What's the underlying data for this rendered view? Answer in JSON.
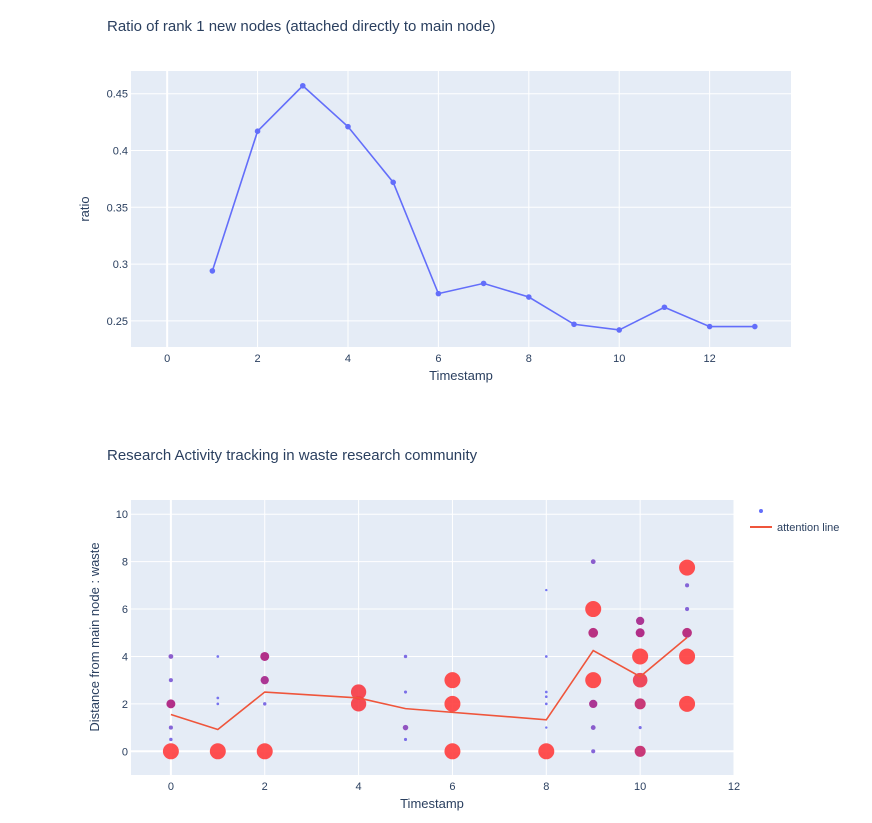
{
  "chart_data": [
    {
      "type": "line",
      "title": "Ratio of rank 1 new nodes (attached directly to main node)",
      "xlabel": "Timestamp",
      "ylabel": "ratio",
      "xlim": [
        -0.8,
        13.8
      ],
      "ylim": [
        0.227,
        0.47
      ],
      "xticks": [
        0,
        2,
        4,
        6,
        8,
        10,
        12
      ],
      "yticks": [
        0.25,
        0.3,
        0.35,
        0.4,
        0.45
      ],
      "ytick_labels": [
        "0.25",
        "0.3",
        "0.35",
        "0.4",
        "0.45"
      ],
      "grid": true,
      "line_color": "#636efa",
      "series": [
        {
          "x": [
            1,
            2,
            3,
            4,
            5,
            6,
            7,
            8,
            9,
            10,
            11,
            12,
            13
          ],
          "values": [
            0.294,
            0.417,
            0.457,
            0.421,
            0.372,
            0.274,
            0.283,
            0.271,
            0.247,
            0.242,
            0.262,
            0.245,
            0.245
          ]
        }
      ]
    },
    {
      "type": "scatter",
      "title": "Research Activity tracking in waste research community",
      "xlabel": "Timestamp",
      "ylabel": "Distance from main node : waste",
      "xlim": [
        -0.85,
        12
      ],
      "ylim": [
        -1,
        10.6
      ],
      "xticks": [
        0,
        2,
        4,
        6,
        8,
        10,
        12
      ],
      "yticks": [
        0,
        2,
        4,
        6,
        8,
        10
      ],
      "grid": true,
      "legend_position": "right",
      "colors": {
        "low": "#636efa",
        "mid": "#ab1a7c",
        "high": "#ff3d3d",
        "line": "#ef553b"
      },
      "series": [
        {
          "name": "",
          "points": [
            {
              "x": 0,
              "y": 0,
              "w": 1.0
            },
            {
              "x": 0,
              "y": 0.5,
              "w": 0.1
            },
            {
              "x": 0,
              "y": 1,
              "w": 0.15
            },
            {
              "x": 0,
              "y": 2,
              "w": 0.5
            },
            {
              "x": 0,
              "y": 3,
              "w": 0.15
            },
            {
              "x": 0,
              "y": 4,
              "w": 0.2
            },
            {
              "x": 1,
              "y": 0,
              "w": 1.0
            },
            {
              "x": 1,
              "y": 2,
              "w": 0.05
            },
            {
              "x": 1,
              "y": 2.25,
              "w": 0.05
            },
            {
              "x": 1,
              "y": 4,
              "w": 0.05
            },
            {
              "x": 2,
              "y": 0,
              "w": 1.0
            },
            {
              "x": 2,
              "y": 2,
              "w": 0.1
            },
            {
              "x": 2,
              "y": 3,
              "w": 0.45
            },
            {
              "x": 2,
              "y": 4,
              "w": 0.5
            },
            {
              "x": 4,
              "y": 2,
              "w": 0.95
            },
            {
              "x": 4,
              "y": 2.5,
              "w": 0.95
            },
            {
              "x": 5,
              "y": 0.5,
              "w": 0.08
            },
            {
              "x": 5,
              "y": 1,
              "w": 0.25
            },
            {
              "x": 5,
              "y": 2.5,
              "w": 0.08
            },
            {
              "x": 5,
              "y": 4,
              "w": 0.1
            },
            {
              "x": 6,
              "y": 0,
              "w": 1.0
            },
            {
              "x": 6,
              "y": 2,
              "w": 1.0
            },
            {
              "x": 6,
              "y": 3,
              "w": 1.0
            },
            {
              "x": 8,
              "y": 0,
              "w": 1.0
            },
            {
              "x": 8,
              "y": 1,
              "w": 0.03
            },
            {
              "x": 8,
              "y": 2,
              "w": 0.05
            },
            {
              "x": 8,
              "y": 2.3,
              "w": 0.05
            },
            {
              "x": 8,
              "y": 2.5,
              "w": 0.05
            },
            {
              "x": 8,
              "y": 4,
              "w": 0.05
            },
            {
              "x": 8,
              "y": 6.8,
              "w": 0.03
            },
            {
              "x": 9,
              "y": 0,
              "w": 0.15
            },
            {
              "x": 9,
              "y": 1,
              "w": 0.2
            },
            {
              "x": 9,
              "y": 2,
              "w": 0.45
            },
            {
              "x": 9,
              "y": 3,
              "w": 1.0
            },
            {
              "x": 9,
              "y": 5,
              "w": 0.55
            },
            {
              "x": 9,
              "y": 6,
              "w": 1.0
            },
            {
              "x": 9,
              "y": 8,
              "w": 0.2
            },
            {
              "x": 10,
              "y": 0,
              "w": 0.65
            },
            {
              "x": 10,
              "y": 1,
              "w": 0.08
            },
            {
              "x": 10,
              "y": 2,
              "w": 0.65
            },
            {
              "x": 10,
              "y": 3,
              "w": 0.9
            },
            {
              "x": 10,
              "y": 4,
              "w": 1.0
            },
            {
              "x": 10,
              "y": 5,
              "w": 0.5
            },
            {
              "x": 10,
              "y": 5.5,
              "w": 0.45
            },
            {
              "x": 11,
              "y": 2,
              "w": 1.0
            },
            {
              "x": 11,
              "y": 4,
              "w": 1.0
            },
            {
              "x": 11,
              "y": 5,
              "w": 0.55
            },
            {
              "x": 11,
              "y": 6,
              "w": 0.15
            },
            {
              "x": 11,
              "y": 7,
              "w": 0.15
            },
            {
              "x": 11,
              "y": 7.75,
              "w": 1.0
            }
          ]
        },
        {
          "name": "attention line",
          "type": "line",
          "x": [
            0,
            1,
            2,
            4,
            5,
            8,
            9,
            10,
            11
          ],
          "values": [
            1.55,
            0.92,
            2.5,
            2.25,
            1.8,
            1.33,
            4.25,
            3.15,
            4.8
          ]
        }
      ]
    }
  ]
}
